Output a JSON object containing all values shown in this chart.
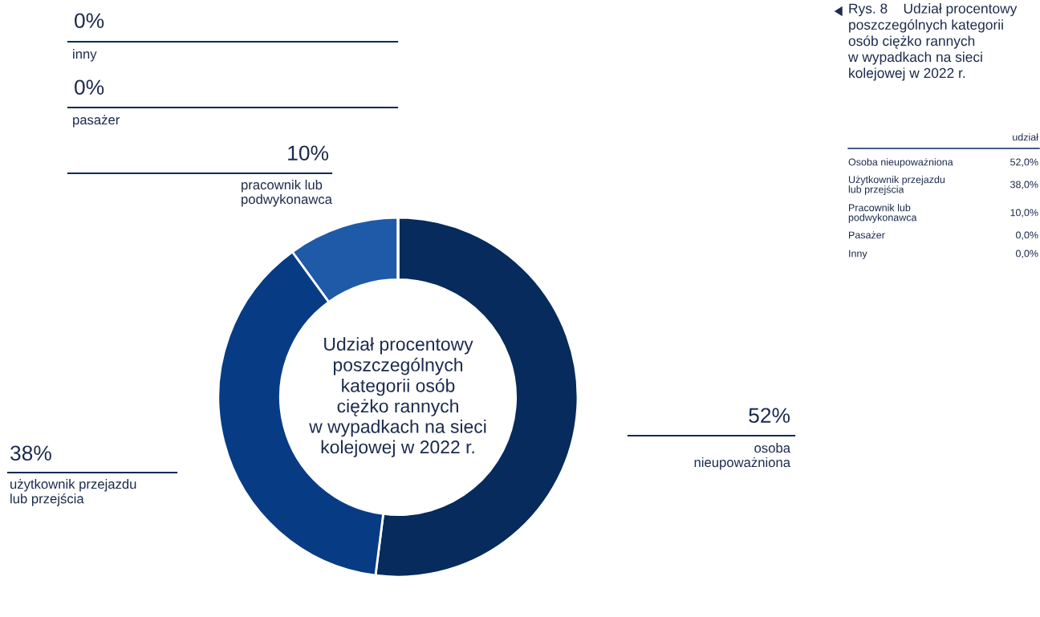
{
  "chart_data": {
    "type": "donut",
    "title": "Udział procentowy\nposzczególnych\nkategorii osób\nciężko rannych\nw wypadkach na sieci\nkolejowej w 2022 r.",
    "categories": [
      "osoba\nnieupoważniona",
      "użytkownik przejazdu\nlub przejścia",
      "pracownik lub\npodwykonawca",
      "pasażer",
      "inny"
    ],
    "values": [
      52,
      38,
      10,
      0,
      0
    ],
    "value_labels": [
      "52%",
      "38%",
      "10%",
      "0%",
      "0%"
    ],
    "colors": [
      "#062b5c",
      "#073c85",
      "#1f5aa8",
      "#2f6fc0",
      "#4a86d0"
    ],
    "annotations": [
      "Rys. 8    Udział procentowy\nposzczególnych kategorii\nosób ciężko rannych\nw wypadkach na sieci\nkolejowej w 2022 r.",
      "udział",
      "Osoba nieupoważniona",
      "52,0%",
      "Użytkownik przejazdu\nlub przejścia",
      "38,0%",
      "Pracownik lub\npodwykonawca",
      "10,0%",
      "Pasażer",
      "0,0%",
      "Inny",
      "0,0%"
    ]
  }
}
